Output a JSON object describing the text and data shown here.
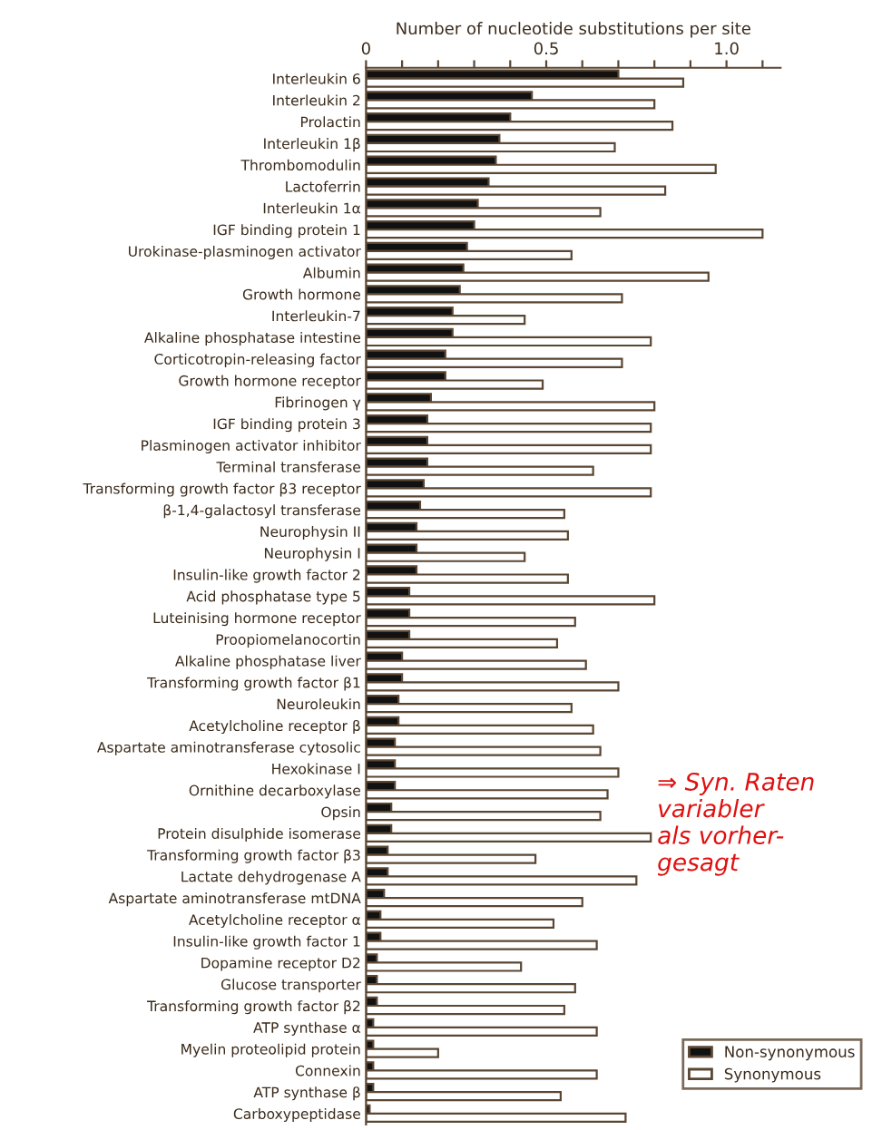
{
  "chart_data": {
    "type": "bar",
    "orientation": "horizontal",
    "xlabel": "Number of nucleotide substitutions per site",
    "categories": [
      "Interleukin 6",
      "Interleukin 2",
      "Prolactin",
      "Interleukin 1β",
      "Thrombomodulin",
      "Lactoferrin",
      "Interleukin 1α",
      "IGF binding protein 1",
      "Urokinase-plasminogen activator",
      "Albumin",
      "Growth hormone",
      "Interleukin-7",
      "Alkaline phosphatase intestine",
      "Corticotropin-releasing factor",
      "Growth hormone receptor",
      "Fibrinogen γ",
      "IGF binding protein 3",
      "Plasminogen activator inhibitor",
      "Terminal transferase",
      "Transforming growth factor β3 receptor",
      "β-1,4-galactosyl transferase",
      "Neurophysin II",
      "Neurophysin I",
      "Insulin-like growth factor 2",
      "Acid phosphatase type 5",
      "Luteinising hormone receptor",
      "Proopiomelanocortin",
      "Alkaline phosphatase liver",
      "Transforming growth factor β1",
      "Neuroleukin",
      "Acetylcholine receptor β",
      "Aspartate aminotransferase cytosolic",
      "Hexokinase I",
      "Ornithine decarboxylase",
      "Opsin",
      "Protein disulphide isomerase",
      "Transforming growth factor β3",
      "Lactate dehydrogenase A",
      "Aspartate aminotransferase mtDNA",
      "Acetylcholine receptor α",
      "Insulin-like growth factor 1",
      "Dopamine receptor D2",
      "Glucose transporter",
      "Transforming growth factor β2",
      "ATP synthase α",
      "Myelin proteolipid protein",
      "Connexin",
      "ATP synthase β",
      "Carboxypeptidase"
    ],
    "series": [
      {
        "name": "Non-synonymous",
        "color": "#111111",
        "values": [
          0.7,
          0.46,
          0.4,
          0.37,
          0.36,
          0.34,
          0.31,
          0.3,
          0.28,
          0.27,
          0.26,
          0.24,
          0.24,
          0.22,
          0.22,
          0.18,
          0.17,
          0.17,
          0.17,
          0.16,
          0.15,
          0.14,
          0.14,
          0.14,
          0.12,
          0.12,
          0.12,
          0.1,
          0.1,
          0.09,
          0.09,
          0.08,
          0.08,
          0.08,
          0.07,
          0.07,
          0.06,
          0.06,
          0.05,
          0.04,
          0.04,
          0.03,
          0.03,
          0.03,
          0.02,
          0.02,
          0.02,
          0.02,
          0.01
        ]
      },
      {
        "name": "Synonymous",
        "color": "#ffffff",
        "values": [
          0.88,
          0.8,
          0.85,
          0.69,
          0.97,
          0.83,
          0.65,
          1.1,
          0.57,
          0.95,
          0.71,
          0.44,
          0.79,
          0.71,
          0.49,
          0.8,
          0.79,
          0.79,
          0.63,
          0.79,
          0.55,
          0.56,
          0.44,
          0.56,
          0.8,
          0.58,
          0.53,
          0.61,
          0.7,
          0.57,
          0.63,
          0.65,
          0.7,
          0.67,
          0.65,
          0.79,
          0.47,
          0.75,
          0.6,
          0.52,
          0.64,
          0.43,
          0.58,
          0.55,
          0.64,
          0.2,
          0.64,
          0.54,
          0.72
        ]
      }
    ],
    "xlim": [
      0,
      1.15
    ],
    "xticks": [
      0,
      {
        "value": 0.1,
        "label": null
      },
      {
        "value": 0.2,
        "label": null
      },
      {
        "value": 0.3,
        "label": null
      },
      {
        "value": 0.4,
        "label": null
      },
      0.5,
      {
        "value": 0.6,
        "label": null
      },
      {
        "value": 0.7,
        "label": null
      },
      {
        "value": 0.8,
        "label": null
      },
      {
        "value": 0.9,
        "label": null
      },
      {
        "value": 1.0,
        "label": "1.0"
      },
      {
        "value": 1.1,
        "label": null
      }
    ],
    "legend": "bottom right",
    "grid": false,
    "annotations": [
      "⇒ Syn. Raten\nvariabler\nals vorher-\ngesagt"
    ]
  }
}
